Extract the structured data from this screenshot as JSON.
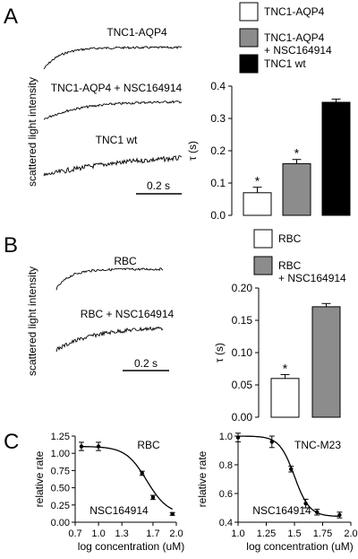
{
  "panels": [
    {
      "label": "A"
    },
    {
      "label": "B"
    },
    {
      "label": "C"
    }
  ],
  "chart_data": [
    {
      "id": "A-traces",
      "type": "line",
      "ylabel": "scattered light intensity",
      "scale_bar": "0.2 s",
      "series": [
        {
          "name": "TNC1-AQP4",
          "tau": 0.07
        },
        {
          "name": "TNC1-AQP4 + NSC164914",
          "tau": 0.16
        },
        {
          "name": "TNC1 wt",
          "tau": 0.35
        }
      ]
    },
    {
      "id": "A-bar",
      "type": "bar",
      "ylabel": "τ (s)",
      "categories": [
        "TNC1-AQP4",
        "TNC1-AQP4 + NSC164914",
        "TNC1 wt"
      ],
      "values": [
        0.07,
        0.16,
        0.35
      ],
      "errors": [
        0.017,
        0.013,
        0.01
      ],
      "significance": [
        "*",
        "*",
        ""
      ],
      "colors": [
        "#ffffff",
        "#8c8c8c",
        "#000000"
      ],
      "ylim": [
        0,
        0.4
      ],
      "yticks": [
        "0.0",
        "0.1",
        "0.2",
        "0.3",
        "0.4"
      ],
      "legend": [
        "TNC1-AQP4",
        "TNC1-AQP4\n+ NSC164914",
        "TNC1 wt"
      ]
    },
    {
      "id": "B-traces",
      "type": "line",
      "ylabel": "scattered light intensity",
      "scale_bar": "0.2 s",
      "series": [
        {
          "name": "RBC",
          "tau": 0.06
        },
        {
          "name": "RBC + NSC164914",
          "tau": 0.17
        }
      ]
    },
    {
      "id": "B-bar",
      "type": "bar",
      "ylabel": "τ (s)",
      "categories": [
        "RBC",
        "RBC + NSC164914"
      ],
      "values": [
        0.06,
        0.171
      ],
      "errors": [
        0.006,
        0.005
      ],
      "significance": [
        "*",
        ""
      ],
      "colors": [
        "#ffffff",
        "#8c8c8c"
      ],
      "ylim": [
        0,
        0.2
      ],
      "yticks": [
        "0.00",
        "0.05",
        "0.10",
        "0.15",
        "0.20"
      ],
      "legend": [
        "RBC",
        "RBC\n+ NSC164914"
      ]
    },
    {
      "id": "C-left",
      "type": "line",
      "title": "RBC",
      "annotation": "NSC164914",
      "xlabel": "log concentration (uM)",
      "ylabel": "relative rate",
      "xlim": [
        0.7,
        2.0
      ],
      "ylim": [
        0,
        1.25
      ],
      "xticks": [
        "0.7",
        "1.0",
        "1.3",
        "1.7",
        "2.0"
      ],
      "yticks": [
        "0.00",
        "0.25",
        "0.50",
        "0.75",
        "1.00",
        "1.25"
      ],
      "x": [
        0.78,
        1.0,
        1.56,
        1.7,
        1.95
      ],
      "y": [
        1.1,
        1.1,
        0.71,
        0.36,
        0.12
      ],
      "errors": [
        0.06,
        0.06,
        0.03,
        0.03,
        0.02
      ],
      "fit": {
        "top": 1.1,
        "bottom": 0.11,
        "logEC50": 1.62,
        "hill": 3.2
      }
    },
    {
      "id": "C-right",
      "type": "line",
      "title": "TNC-M23",
      "annotation": "NSC164914",
      "xlabel": "log concentration (uM)",
      "ylabel": "relative rate",
      "xlim": [
        1.0,
        2.0
      ],
      "ylim": [
        0.4,
        1.0
      ],
      "xticks": [
        "1.0",
        "1.25",
        "1.5",
        "1.75",
        "2.0"
      ],
      "yticks": [
        "0.4",
        "0.6",
        "0.8",
        "1.0"
      ],
      "x": [
        1.0,
        1.3,
        1.47,
        1.6,
        1.7,
        1.9
      ],
      "y": [
        0.99,
        0.96,
        0.77,
        0.53,
        0.47,
        0.45
      ],
      "errors": [
        0.03,
        0.04,
        0.02,
        0.03,
        0.02,
        0.02
      ],
      "fit": {
        "top": 1.0,
        "bottom": 0.44,
        "logEC50": 1.5,
        "hill": 6.5
      }
    }
  ]
}
